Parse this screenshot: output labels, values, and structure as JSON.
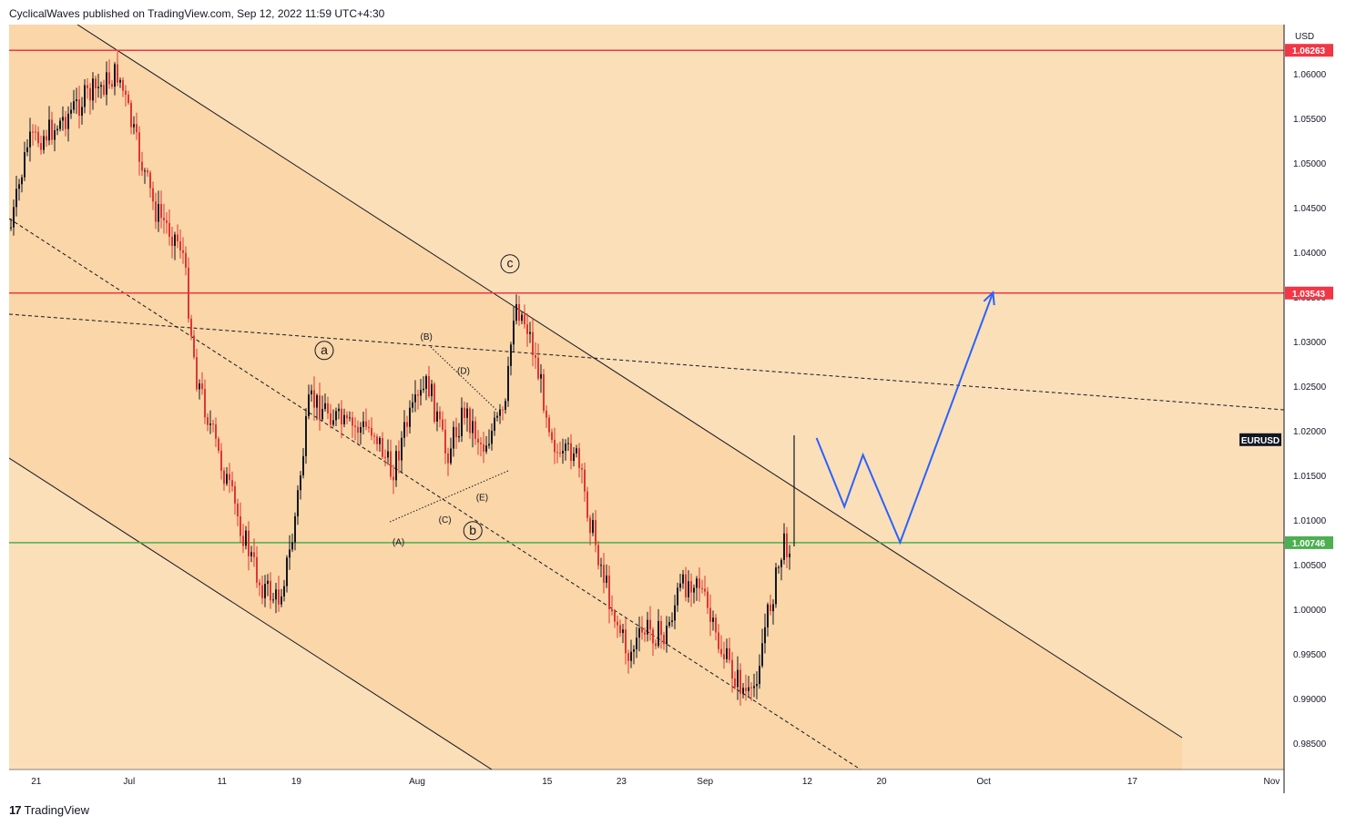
{
  "header": {
    "published_by": "CyclicalWaves published on TradingView.com, Sep 12, 2022 11:59 UTC+4:30"
  },
  "footer": {
    "brand": "TradingView",
    "logo_icon": "tradingview-logo-icon"
  },
  "colors": {
    "background": "#fbdfb9",
    "channel_fill": "#fad6a8",
    "bull_candle": "#131722",
    "bear_candle": "#e03535",
    "resistance_line": "#f23645",
    "support_line": "#4caf50",
    "projection": "#2962ff",
    "tag_red_bg": "#f23645",
    "tag_green_bg": "#4caf50",
    "tag_dark_bg": "#131722"
  },
  "chart_data": {
    "type": "candlestick",
    "symbol": "EURUSD",
    "currency_label": "USD",
    "x_ticks": [
      "21",
      "Jul",
      "11",
      "19",
      "Aug",
      "15",
      "23",
      "Sep",
      "12",
      "20",
      "Oct",
      "17",
      "Nov"
    ],
    "y_ticks": [
      "1.06000",
      "1.05500",
      "1.05000",
      "1.04500",
      "1.04000",
      "1.03500",
      "1.03000",
      "1.02500",
      "1.02000",
      "1.01500",
      "1.01000",
      "1.00500",
      "1.00000",
      "0.99500",
      "0.99000",
      "0.98500"
    ],
    "ylim": [
      0.9825,
      1.064
    ],
    "grid": false,
    "price_levels": [
      {
        "value": 1.06263,
        "label": "1.06263",
        "color": "red"
      },
      {
        "value": 1.03543,
        "label": "1.03543",
        "color": "red"
      },
      {
        "value": 1.00746,
        "label": "1.00746",
        "color": "green"
      }
    ],
    "last_price_tag": {
      "value": 1.019,
      "label": "EURUSD"
    },
    "wave_labels": [
      {
        "text": "a",
        "circled": true,
        "date": "2022-07-22",
        "price": 1.029
      },
      {
        "text": "b",
        "circled": true,
        "date": "2022-08-07",
        "price": 1.0088
      },
      {
        "text": "c",
        "circled": true,
        "date": "2022-08-11",
        "price": 1.0387
      },
      {
        "text": "(A)",
        "circled": false,
        "date": "2022-07-30",
        "price": 1.0075
      },
      {
        "text": "(B)",
        "circled": false,
        "date": "2022-08-02",
        "price": 1.0305
      },
      {
        "text": "(C)",
        "circled": false,
        "date": "2022-08-04",
        "price": 1.01
      },
      {
        "text": "(D)",
        "circled": false,
        "date": "2022-08-06",
        "price": 1.0267
      },
      {
        "text": "(E)",
        "circled": false,
        "date": "2022-08-08",
        "price": 1.0125
      }
    ],
    "projection_path": [
      {
        "date": "2022-09-13",
        "price": 1.0192
      },
      {
        "date": "2022-09-16",
        "price": 1.0115
      },
      {
        "date": "2022-09-18",
        "price": 1.0173
      },
      {
        "date": "2022-09-22",
        "price": 1.0075
      },
      {
        "date": "2022-10-02",
        "price": 1.0355
      }
    ]
  }
}
